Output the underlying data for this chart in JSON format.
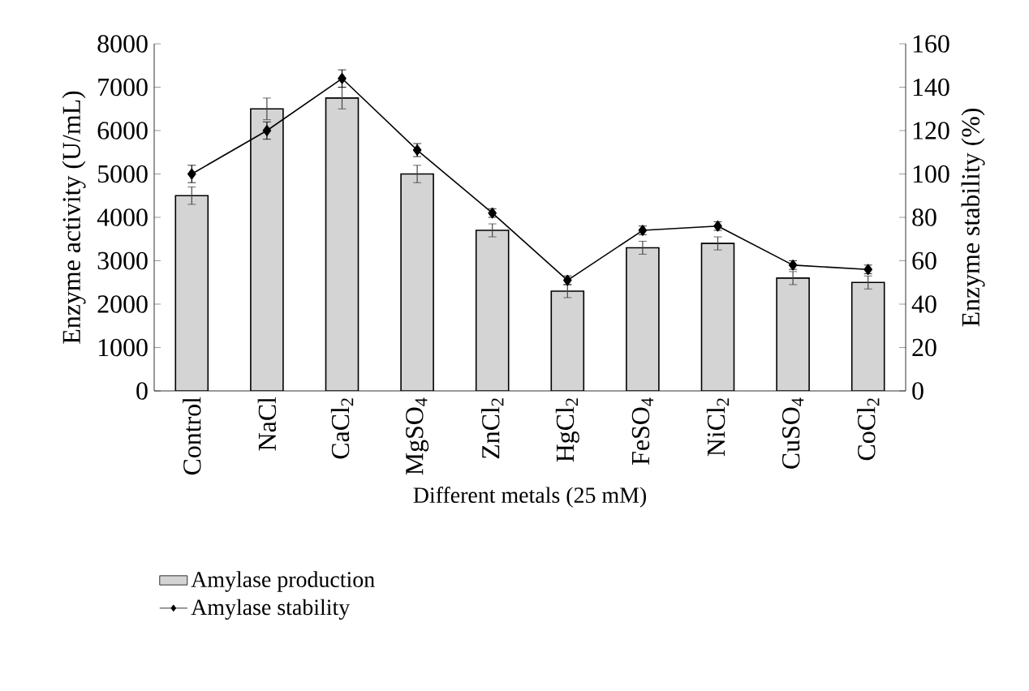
{
  "chart_data": {
    "type": "bar",
    "xlabel": "Different metals (25 mM)",
    "ylabel": "Enzyme activity (U/mL)",
    "y2label": "Enzyme stability (%)",
    "categories": [
      "Control",
      "NaCl",
      "CaCl$_{2}$",
      "MgSO$_{4}$",
      "ZnCl$_{2}$",
      "HgCl$_{2}$",
      "FeSO$_{4}$",
      "NiCl$_{2}$",
      "CuSO$_{4}$",
      "CoCl$_{2}$"
    ],
    "series": [
      {
        "name": "Amylase production",
        "color": "#d4d4d4",
        "values": [
          4500,
          6500,
          6750,
          5000,
          3700,
          2300,
          3300,
          3400,
          2600,
          2500
        ],
        "errors": [
          200,
          250,
          250,
          200,
          150,
          150,
          150,
          150,
          150,
          150
        ]
      },
      {
        "name": "Amylase stability",
        "type": "line",
        "axis": "y2",
        "color": "#000000",
        "marker": "diamond",
        "values": [
          100,
          120,
          144,
          111,
          82,
          51,
          74,
          76,
          58,
          56
        ],
        "errors": [
          4,
          4,
          4,
          3,
          2,
          2,
          2,
          2,
          2,
          2
        ]
      }
    ],
    "ylim": [
      0,
      8000
    ],
    "yticks": [
      0,
      1000,
      2000,
      3000,
      4000,
      5000,
      6000,
      7000,
      8000
    ],
    "y2lim": [
      0,
      160
    ],
    "y2ticks": [
      0,
      20,
      40,
      60,
      80,
      100,
      120,
      140,
      160
    ],
    "legend": "bottom",
    "grid": false
  }
}
